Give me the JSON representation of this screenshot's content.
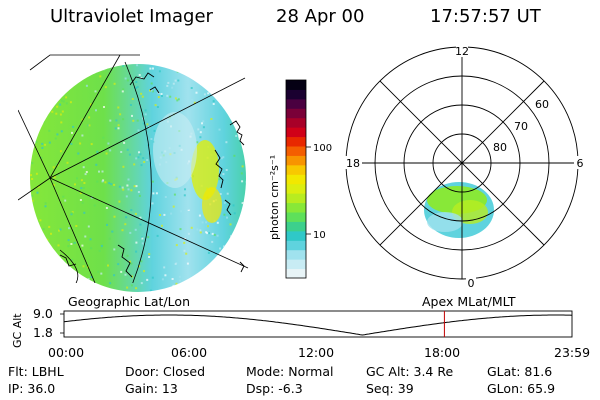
{
  "header": {
    "title": "Ultraviolet Imager",
    "date": "28 Apr 00",
    "time": "17:57:57 UT"
  },
  "colorbar": {
    "unit_label": "photon cm⁻²s⁻¹",
    "ticks": [
      "100",
      "10"
    ],
    "colors": [
      "#e8f4f7",
      "#c8ecf4",
      "#a0e2ee",
      "#5fd3de",
      "#2fc8c8",
      "#3cd08c",
      "#5ee05a",
      "#88e838",
      "#b8ec20",
      "#dcee10",
      "#f2e800",
      "#f8c800",
      "#f89400",
      "#f45e00",
      "#e82800",
      "#d00018",
      "#a80028",
      "#7a0038",
      "#4a0040",
      "#1a0030",
      "#050014"
    ]
  },
  "geo_panel": {
    "label": "Geographic Lat/Lon"
  },
  "polar_panel": {
    "label": "Apex MLat/MLT",
    "mlt_labels": {
      "top": "12",
      "left": "18",
      "right": "6",
      "bottom": "0"
    },
    "lat_labels": [
      "60",
      "70",
      "80"
    ]
  },
  "altitude_plot": {
    "ylabel": "GC Alt",
    "yticks": [
      "9.0",
      "1.8"
    ],
    "xticks": [
      "00:00",
      "06:00",
      "12:00",
      "18:00",
      "23:59"
    ],
    "current_time_hours": 17.97
  },
  "status": {
    "flt": "Flt: LBHL",
    "ip": "IP: 36.0",
    "door": "Door: Closed",
    "gain": "Gain: 13",
    "mode": "Mode: Normal",
    "dsp": "Dsp:    -6.3",
    "gc_alt": "GC Alt: 3.4 Re",
    "seq": "Seq: 39",
    "glat": "GLat:  81.6",
    "glon": "GLon:  65.9"
  }
}
